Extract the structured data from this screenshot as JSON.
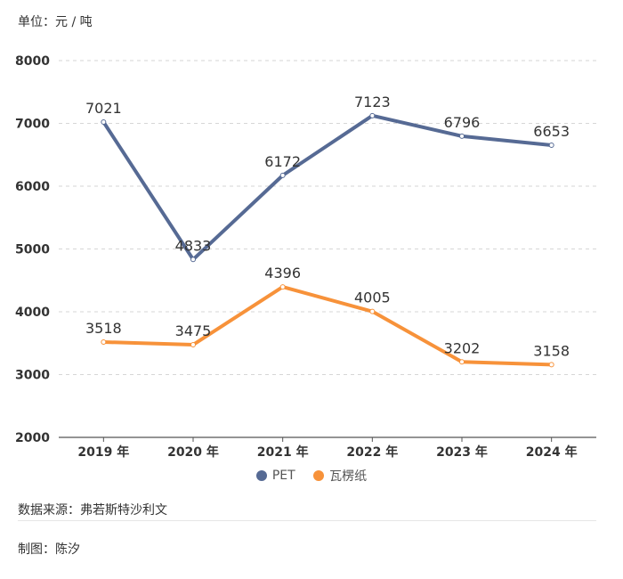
{
  "unit_label": "单位：元 / 吨",
  "source_label": "数据来源：弗若斯特沙利文",
  "author_label": "制图：陈汐",
  "colors": {
    "pet": "#566a94",
    "paper": "#f7923a",
    "grid": "#d6d6d6",
    "axis": "#333333"
  },
  "chart_data": {
    "type": "line",
    "categories": [
      "2019 年",
      "2020 年",
      "2021 年",
      "2022 年",
      "2023 年",
      "2024 年"
    ],
    "series": [
      {
        "name": "PET",
        "values": [
          7021,
          4833,
          6172,
          7123,
          6796,
          6653
        ]
      },
      {
        "name": "瓦楞纸",
        "values": [
          3518,
          3475,
          4396,
          4005,
          3202,
          3158
        ]
      }
    ],
    "ylim": [
      2000,
      8000
    ],
    "yticks": [
      2000,
      3000,
      4000,
      5000,
      6000,
      7000,
      8000
    ],
    "grid": true,
    "legend": "bottom"
  }
}
